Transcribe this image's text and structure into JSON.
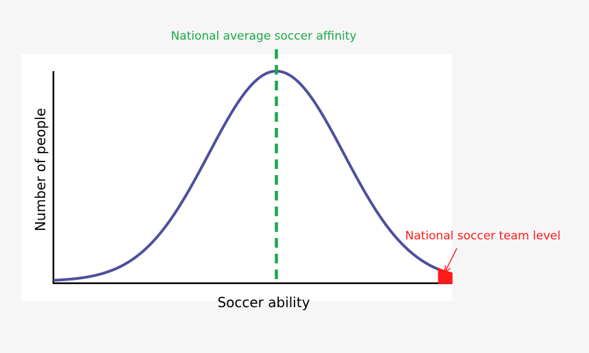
{
  "chart_data": {
    "type": "line",
    "xlabel": "Soccer ability",
    "ylabel": "Number of people",
    "series": [
      {
        "distribution": "normal",
        "mean": 0,
        "sd": 1,
        "x_range": [
          -3.3,
          2.6
        ],
        "color": "#4f4f9f"
      }
    ],
    "annotations": [
      {
        "id": "mean_line",
        "text": "National average soccer affinity",
        "x": 0,
        "style": "dashed vertical line",
        "color": "#19a84a"
      },
      {
        "id": "team_level",
        "text": "National soccer team level",
        "x_from": 2.4,
        "x_to": 2.6,
        "style": "shaded tail with arrow",
        "color": "#ff1a1a"
      }
    ],
    "grid": false,
    "legend": "none"
  }
}
